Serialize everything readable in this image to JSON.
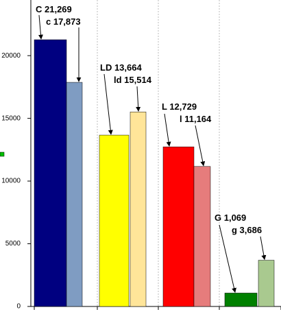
{
  "chart_data": {
    "type": "bar",
    "values": [
      21269,
      17873,
      13664,
      15514,
      12729,
      11164,
      1069,
      3686
    ],
    "value_labels": [
      "C 21,269",
      "c 17,873",
      "LD 13,664",
      "ld 15,514",
      "L 12,729",
      "l 11,164",
      "G 1,069",
      "g 3,686"
    ],
    "colors": [
      "#000080",
      "#7f9cc2",
      "#ffff00",
      "#ffe599",
      "#ff0000",
      "#e67c7c",
      "#008000",
      "#a9c98f"
    ],
    "ylim": [
      0,
      24000
    ],
    "yticks": [
      0,
      5000,
      10000,
      15000,
      20000
    ]
  }
}
